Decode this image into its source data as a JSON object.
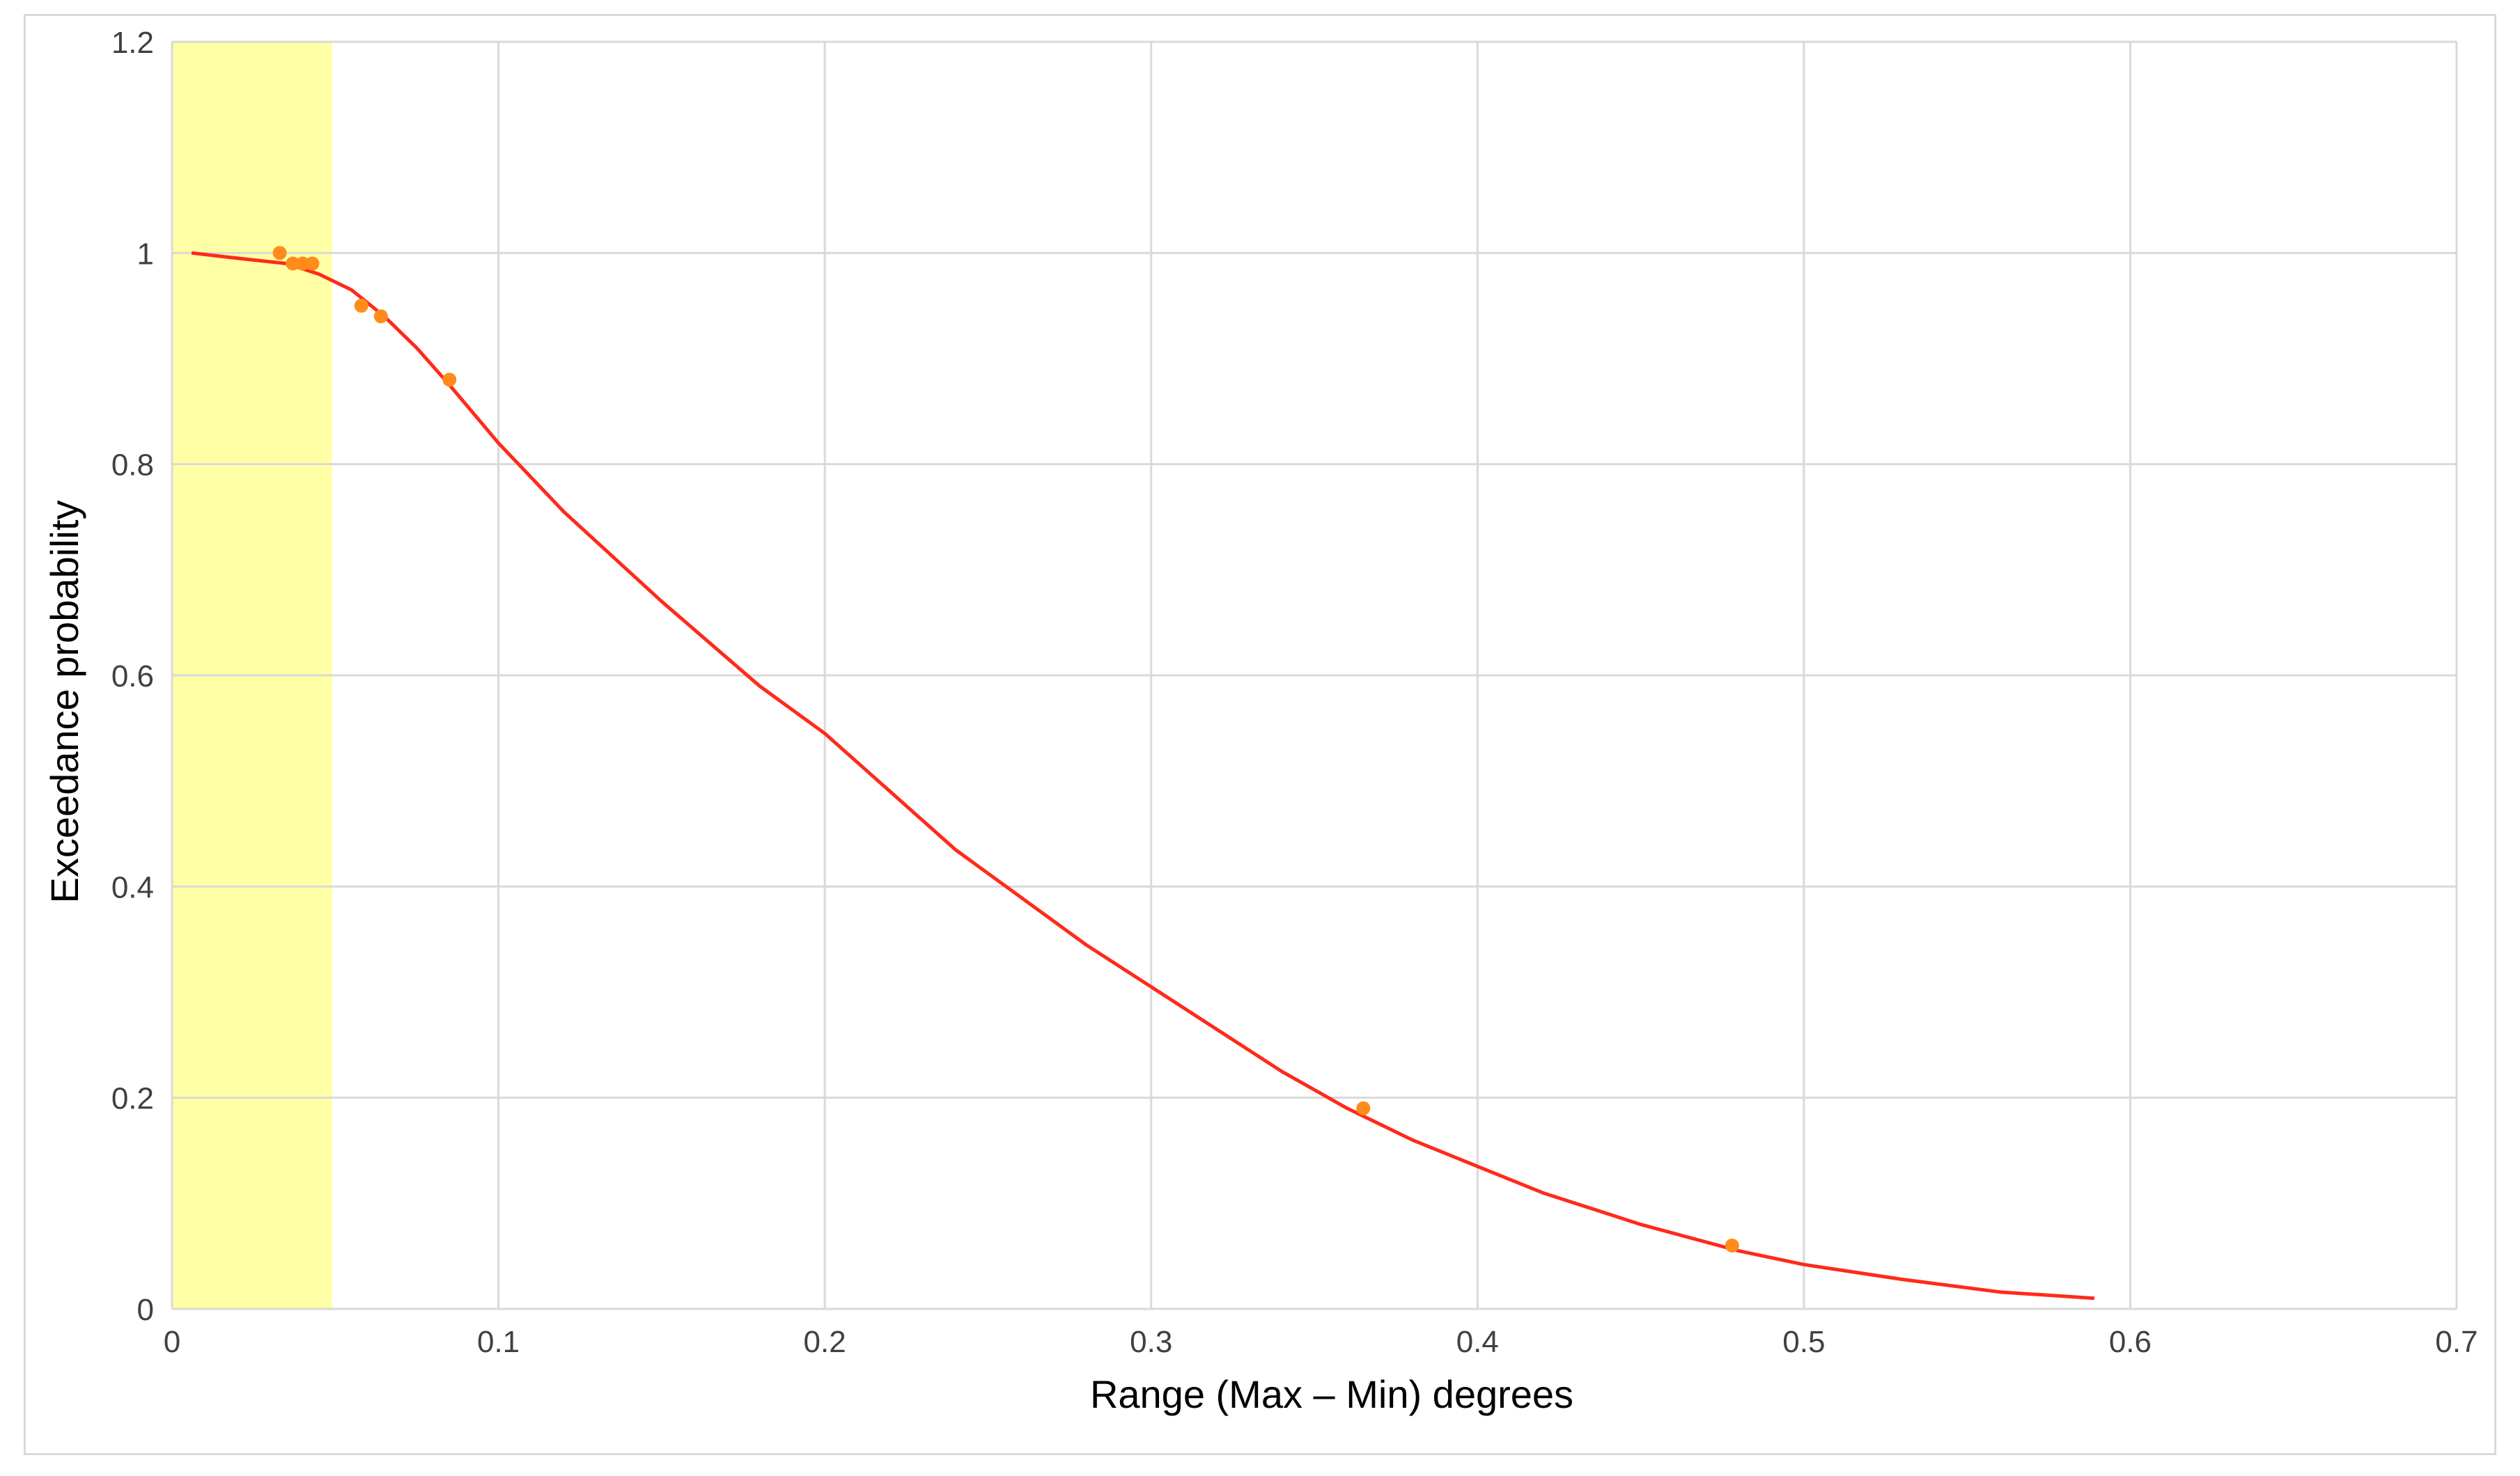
{
  "chart_data": {
    "type": "scatter",
    "title": "",
    "xlabel": "Range (Max – Min) degrees",
    "ylabel": "Exceedance probability",
    "xlim": [
      0,
      0.7
    ],
    "ylim": [
      0,
      1.2
    ],
    "x_ticks": [
      "0",
      "0.1",
      "0.2",
      "0.3",
      "0.4",
      "0.5",
      "0.6",
      "0.7"
    ],
    "y_ticks": [
      "0",
      "0.2",
      "0.4",
      "0.6",
      "0.8",
      "1",
      "1.2"
    ],
    "grid": true,
    "highlight_band": {
      "x_from": 0,
      "x_to": 0.049,
      "color": "#ffffa6"
    },
    "series": [
      {
        "kind": "points",
        "color": "#ff8c1a",
        "x": [
          0.033,
          0.037,
          0.04,
          0.043,
          0.058,
          0.064,
          0.085,
          0.365,
          0.478
        ],
        "y": [
          1.0,
          0.99,
          0.99,
          0.99,
          0.95,
          0.94,
          0.88,
          0.19,
          0.06
        ]
      },
      {
        "kind": "line",
        "color": "#ff2a1a",
        "x": [
          0.006,
          0.02,
          0.035,
          0.045,
          0.055,
          0.065,
          0.075,
          0.085,
          0.1,
          0.12,
          0.15,
          0.18,
          0.2,
          0.22,
          0.24,
          0.26,
          0.28,
          0.3,
          0.32,
          0.34,
          0.36,
          0.38,
          0.4,
          0.42,
          0.45,
          0.48,
          0.5,
          0.53,
          0.56,
          0.589
        ],
        "y": [
          1.0,
          0.995,
          0.99,
          0.98,
          0.965,
          0.94,
          0.91,
          0.875,
          0.82,
          0.755,
          0.67,
          0.59,
          0.545,
          0.49,
          0.435,
          0.39,
          0.345,
          0.305,
          0.265,
          0.225,
          0.19,
          0.16,
          0.135,
          0.11,
          0.08,
          0.055,
          0.042,
          0.028,
          0.016,
          0.01
        ]
      }
    ]
  }
}
